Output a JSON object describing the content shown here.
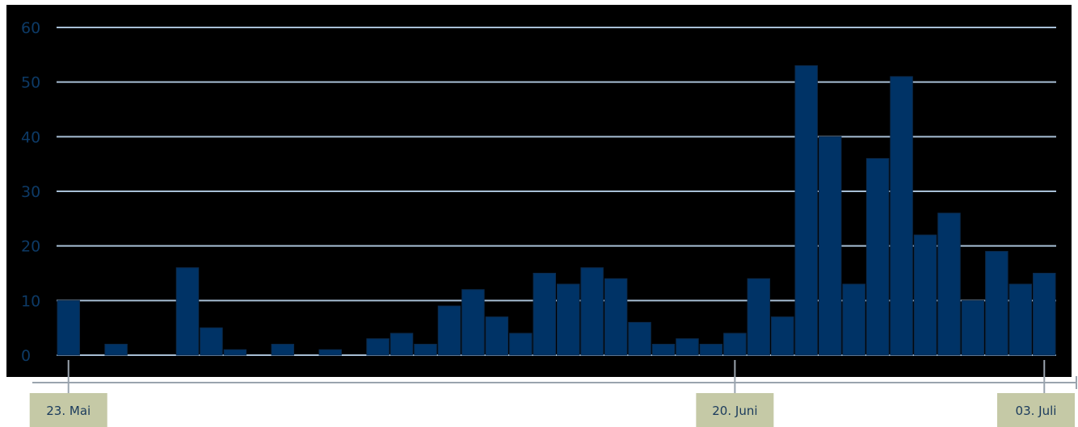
{
  "chart_data": {
    "type": "bar",
    "values": [
      10,
      0,
      2,
      0,
      0,
      16,
      5,
      1,
      0,
      2,
      0,
      1,
      0,
      3,
      4,
      2,
      9,
      12,
      7,
      4,
      15,
      13,
      16,
      14,
      6,
      2,
      3,
      2,
      4,
      14,
      7,
      53,
      40,
      13,
      36,
      51,
      22,
      26,
      10,
      19,
      13,
      15
    ],
    "ylim": [
      0,
      60
    ],
    "yticks": [
      0,
      10,
      20,
      30,
      40,
      50,
      60
    ],
    "grid": true,
    "xlabels": [
      {
        "label": "23. Mai",
        "index": 0
      },
      {
        "label": "20. Juni",
        "index": 28
      },
      {
        "label": "03. Juli",
        "index": 41
      }
    ]
  },
  "colors": {
    "background": "#000000",
    "bar": "#003366",
    "grid": "#a8bfd6",
    "ytick_text": "#0d3a66",
    "label_box": "#c5c9a6",
    "label_text": "#1a3a5c"
  }
}
